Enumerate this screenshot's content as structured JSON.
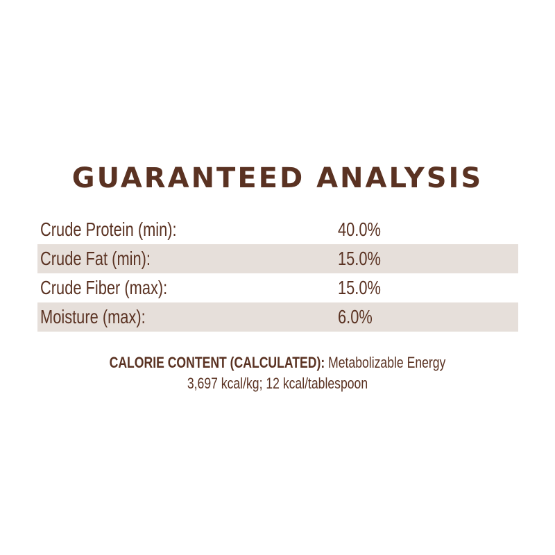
{
  "title": "GUARANTEED ANALYSIS",
  "rows": [
    {
      "label": "Crude Protein (min):",
      "value": "40.0%"
    },
    {
      "label": "Crude Fat (min):",
      "value": "15.0%"
    },
    {
      "label": "Crude Fiber (max):",
      "value": "15.0%"
    },
    {
      "label": "Moisture (max):",
      "value": "6.0%"
    }
  ],
  "calorie": {
    "heading": "CALORIE CONTENT (CALCULATED):",
    "text": "Metabolizable Energy",
    "line2": "3,697 kcal/kg; 12 kcal/tablespoon"
  },
  "colors": {
    "text": "#5a3222",
    "row_shade": "#e6dfda",
    "background": "#ffffff"
  }
}
